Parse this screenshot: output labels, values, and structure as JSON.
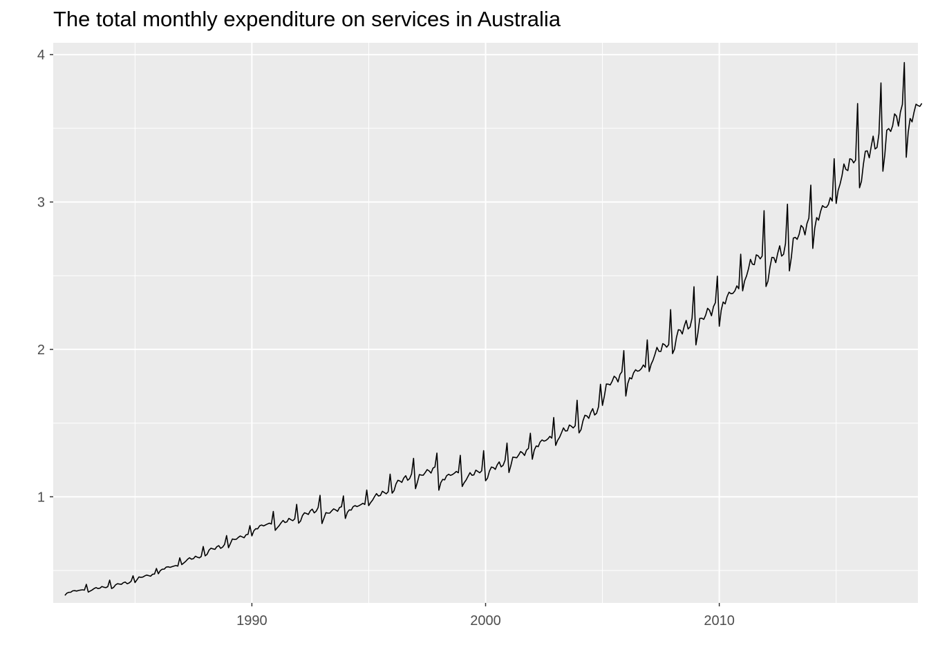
{
  "chart_data": {
    "type": "line",
    "title": "The total monthly expenditure on services in Australia",
    "xlabel": "",
    "ylabel": "",
    "xlim": [
      1981.5,
      2018.5
    ],
    "ylim": [
      0.28,
      4.08
    ],
    "x_ticks": [
      1990,
      2000,
      2010
    ],
    "x_minor_ticks": [
      1985,
      1995,
      2005,
      2015
    ],
    "y_ticks": [
      1,
      2,
      3,
      4
    ],
    "y_minor_ticks": [
      0.5,
      1.5,
      2.5,
      3.5
    ],
    "grid": true,
    "legend": "none",
    "colors": {
      "panel": "#ebebeb",
      "grid": "#ffffff",
      "line": "#000000",
      "tick_text": "#4d4d4d",
      "tick_mark": "#333333"
    },
    "series": [
      {
        "start": 1982.0,
        "frequency": 12,
        "annual_means": [
          0.36,
          0.38,
          0.41,
          0.46,
          0.52,
          0.58,
          0.65,
          0.72,
          0.8,
          0.83,
          0.89,
          0.9,
          0.93,
          1.01,
          1.11,
          1.16,
          1.14,
          1.15,
          1.2,
          1.28,
          1.37,
          1.45,
          1.55,
          1.78,
          1.84,
          1.99,
          2.13,
          2.23,
          2.36,
          2.58,
          2.62,
          2.78,
          2.94,
          3.22,
          3.34,
          3.52,
          3.62
        ],
        "seasonal_factors": [
          0.92,
          0.95,
          0.98,
          0.99,
          1.0,
          1.0,
          1.01,
          1.02,
          1.01,
          1.02,
          1.03,
          1.13
        ],
        "values_note": ""
      }
    ]
  }
}
